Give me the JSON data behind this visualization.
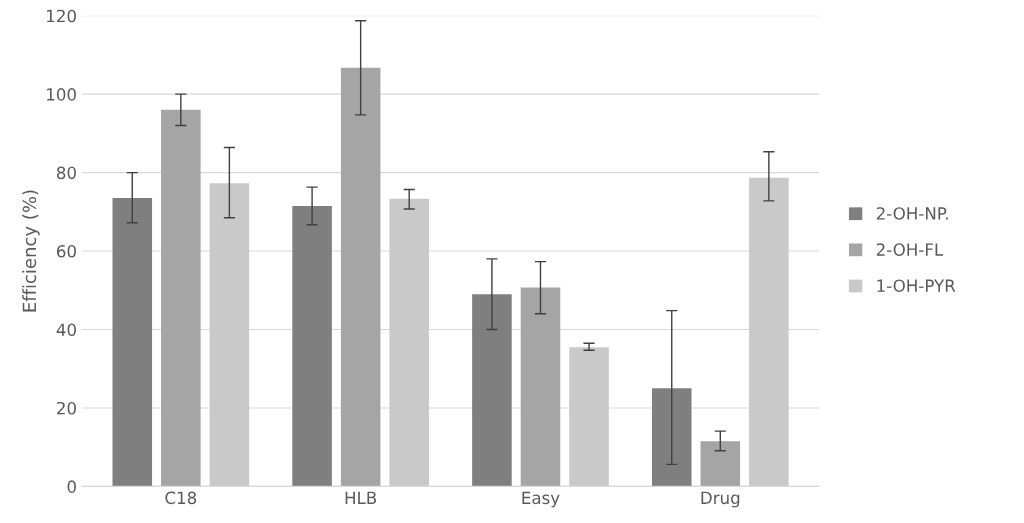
{
  "chart_data": {
    "type": "bar",
    "ylabel": "Efficiency (%)",
    "categories": [
      "C18",
      "HLB",
      "Easy",
      "Drug"
    ],
    "series": [
      {
        "name": "2-OH-NP.",
        "color": "#7f7f7f",
        "values": [
          73.5,
          71.5,
          49,
          25
        ],
        "errors": [
          [
            67.2,
            80
          ],
          [
            66.7,
            76.3
          ],
          [
            40,
            58
          ],
          [
            5.6,
            44.8
          ]
        ]
      },
      {
        "name": "2-OH-FL",
        "color": "#a5a5a5",
        "values": [
          96,
          106.7,
          50.7,
          11.5
        ],
        "errors": [
          [
            92,
            100
          ],
          [
            94.7,
            118.7
          ],
          [
            44,
            57.3
          ],
          [
            9.1,
            14.1
          ]
        ]
      },
      {
        "name": "1-OH-PYR",
        "color": "#c9c9c9",
        "values": [
          77.3,
          73.3,
          35.5,
          78.7
        ],
        "errors": [
          [
            68.5,
            86.4
          ],
          [
            70.7,
            75.7
          ],
          [
            34.7,
            36.5
          ],
          [
            72.8,
            85.3
          ]
        ]
      }
    ],
    "ylim": [
      0,
      120
    ],
    "yticks": [
      0,
      20,
      40,
      60,
      80,
      100,
      120
    ],
    "grid": "y",
    "legend": "right"
  }
}
